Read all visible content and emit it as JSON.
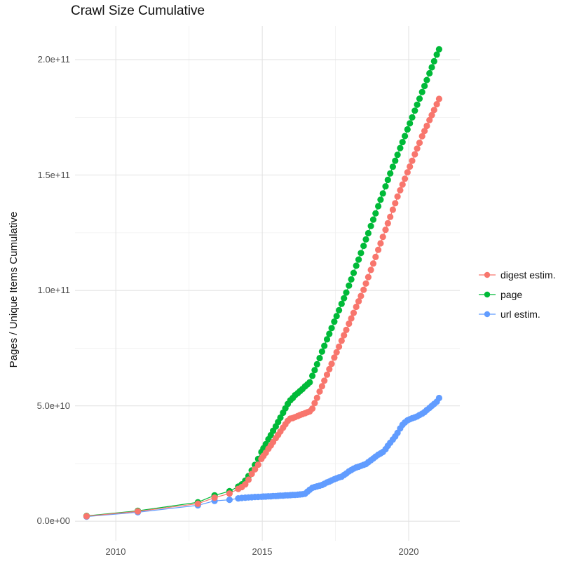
{
  "title": "Crawl Size Cumulative",
  "axes": {
    "y": {
      "title": "Pages / Unique Items Cumulative",
      "tick_labels": [
        "2.0e+11",
        "1.5e+11",
        "1.0e+11",
        "5.0e+10",
        "0.0e+00"
      ]
    },
    "x": {
      "title": "",
      "tick_labels": [
        "2010",
        "2015",
        "2020"
      ]
    }
  },
  "legend": {
    "items": [
      "digest estim.",
      "page",
      "url estim."
    ]
  },
  "chart_data": {
    "type": "scatter",
    "title": "Crawl Size Cumulative",
    "xlabel": "",
    "ylabel": "Pages / Unique Items Cumulative",
    "value_unit": "1e9",
    "xlim": [
      2008.6,
      2021.75
    ],
    "ylim_e9": [
      -8,
      215
    ],
    "grid": "on",
    "legend_position": "right",
    "axes": {
      "x_major": [
        2010,
        2015,
        2020
      ],
      "x_minor": [
        2012.5,
        2017.5
      ],
      "y_major_e9": [
        0,
        50,
        100,
        150,
        200
      ],
      "y_minor_e9": [
        25,
        75,
        125,
        175
      ]
    },
    "draw_order": [
      2,
      1,
      0
    ],
    "series": [
      {
        "name": "digest estim.",
        "color": "#F8766D",
        "points": [
          [
            2009.0,
            2.2
          ],
          [
            2010.75,
            4.3
          ],
          [
            2012.8,
            7.6
          ],
          [
            2013.37,
            10.2
          ],
          [
            2013.88,
            12
          ],
          [
            2014.18,
            14
          ],
          [
            2014.3,
            14.8
          ],
          [
            2014.42,
            16
          ],
          [
            2014.53,
            18
          ],
          [
            2014.64,
            20.5
          ],
          [
            2014.75,
            22.5
          ],
          [
            2014.86,
            24.5
          ],
          [
            2014.97,
            27
          ],
          [
            2015.04,
            28.3
          ],
          [
            2015.12,
            29.7
          ],
          [
            2015.21,
            31.4
          ],
          [
            2015.29,
            32.8
          ],
          [
            2015.37,
            34.3
          ],
          [
            2015.46,
            36
          ],
          [
            2015.54,
            37.4
          ],
          [
            2015.62,
            38.9
          ],
          [
            2015.71,
            40.5
          ],
          [
            2015.79,
            42
          ],
          [
            2015.87,
            43.5
          ],
          [
            2015.96,
            44.5
          ],
          [
            2016.04,
            44.7
          ],
          [
            2016.12,
            45.1
          ],
          [
            2016.21,
            45.6
          ],
          [
            2016.29,
            46
          ],
          [
            2016.37,
            46.4
          ],
          [
            2016.46,
            46.8
          ],
          [
            2016.54,
            47.2
          ],
          [
            2016.62,
            47.6
          ],
          [
            2016.71,
            48.8
          ],
          [
            2016.79,
            51.2
          ],
          [
            2016.87,
            53.5
          ],
          [
            2016.96,
            56.2
          ],
          [
            2017.04,
            58.5
          ],
          [
            2017.12,
            60.9
          ],
          [
            2017.21,
            63.5
          ],
          [
            2017.29,
            65.9
          ],
          [
            2017.37,
            68.2
          ],
          [
            2017.46,
            70.9
          ],
          [
            2017.54,
            73.2
          ],
          [
            2017.62,
            75.6
          ],
          [
            2017.71,
            78.2
          ],
          [
            2017.79,
            80.6
          ],
          [
            2017.87,
            82.9
          ],
          [
            2017.96,
            85.6
          ],
          [
            2018.04,
            87.9
          ],
          [
            2018.12,
            90.3
          ],
          [
            2018.21,
            92.9
          ],
          [
            2018.29,
            95.3
          ],
          [
            2018.37,
            97.6
          ],
          [
            2018.46,
            100.3
          ],
          [
            2018.54,
            103
          ],
          [
            2018.62,
            105.8
          ],
          [
            2018.71,
            108.9
          ],
          [
            2018.79,
            111.7
          ],
          [
            2018.87,
            114.5
          ],
          [
            2018.96,
            117.6
          ],
          [
            2019.04,
            120.4
          ],
          [
            2019.12,
            123.2
          ],
          [
            2019.21,
            126.3
          ],
          [
            2019.29,
            129.1
          ],
          [
            2019.37,
            131.9
          ],
          [
            2019.46,
            135
          ],
          [
            2019.54,
            137.8
          ],
          [
            2019.62,
            140.7
          ],
          [
            2019.71,
            143.4
          ],
          [
            2019.79,
            145.9
          ],
          [
            2019.87,
            148.4
          ],
          [
            2019.96,
            151.2
          ],
          [
            2020.04,
            153.7
          ],
          [
            2020.12,
            156.2
          ],
          [
            2020.21,
            159
          ],
          [
            2020.29,
            161.5
          ],
          [
            2020.37,
            164
          ],
          [
            2020.46,
            166.8
          ],
          [
            2020.54,
            169.1
          ],
          [
            2020.62,
            171.3
          ],
          [
            2020.71,
            173.8
          ],
          [
            2020.79,
            176
          ],
          [
            2020.87,
            178.2
          ],
          [
            2020.96,
            180.7
          ],
          [
            2021.04,
            183
          ]
        ]
      },
      {
        "name": "page",
        "color": "#00BA38",
        "points": [
          [
            2009.0,
            2.3
          ],
          [
            2010.75,
            4.5
          ],
          [
            2012.8,
            8.2
          ],
          [
            2013.37,
            11.2
          ],
          [
            2013.88,
            13
          ],
          [
            2014.18,
            15
          ],
          [
            2014.3,
            16
          ],
          [
            2014.42,
            17.6
          ],
          [
            2014.53,
            19.6
          ],
          [
            2014.64,
            22
          ],
          [
            2014.75,
            24.4
          ],
          [
            2014.86,
            27
          ],
          [
            2014.97,
            30
          ],
          [
            2015.04,
            31.6
          ],
          [
            2015.12,
            33.4
          ],
          [
            2015.21,
            35.5
          ],
          [
            2015.29,
            37.3
          ],
          [
            2015.37,
            39.2
          ],
          [
            2015.46,
            41.1
          ],
          [
            2015.54,
            43
          ],
          [
            2015.62,
            44.9
          ],
          [
            2015.71,
            47
          ],
          [
            2015.79,
            48.9
          ],
          [
            2015.87,
            50.8
          ],
          [
            2015.96,
            52.4
          ],
          [
            2016.04,
            53.4
          ],
          [
            2016.12,
            54.6
          ],
          [
            2016.21,
            55.5
          ],
          [
            2016.29,
            56.4
          ],
          [
            2016.37,
            57.3
          ],
          [
            2016.46,
            58.4
          ],
          [
            2016.54,
            59.3
          ],
          [
            2016.62,
            60.2
          ],
          [
            2016.71,
            63
          ],
          [
            2016.79,
            65.5
          ],
          [
            2016.87,
            68
          ],
          [
            2016.96,
            70.7
          ],
          [
            2017.04,
            73.5
          ],
          [
            2017.12,
            76
          ],
          [
            2017.21,
            78.8
          ],
          [
            2017.29,
            81.2
          ],
          [
            2017.37,
            83.7
          ],
          [
            2017.46,
            86.5
          ],
          [
            2017.54,
            88.9
          ],
          [
            2017.62,
            91.4
          ],
          [
            2017.71,
            94.2
          ],
          [
            2017.79,
            96.6
          ],
          [
            2017.87,
            99.1
          ],
          [
            2017.96,
            102.1
          ],
          [
            2018.04,
            104.8
          ],
          [
            2018.12,
            107.6
          ],
          [
            2018.21,
            110.7
          ],
          [
            2018.29,
            113.4
          ],
          [
            2018.37,
            116.2
          ],
          [
            2018.46,
            119.3
          ],
          [
            2018.54,
            122.1
          ],
          [
            2018.62,
            124.8
          ],
          [
            2018.71,
            127.9
          ],
          [
            2018.79,
            130.7
          ],
          [
            2018.87,
            133.4
          ],
          [
            2018.96,
            136.5
          ],
          [
            2019.04,
            139.3
          ],
          [
            2019.12,
            142
          ],
          [
            2019.21,
            145.1
          ],
          [
            2019.29,
            147.9
          ],
          [
            2019.37,
            150.7
          ],
          [
            2019.46,
            153.6
          ],
          [
            2019.54,
            156.2
          ],
          [
            2019.62,
            158.8
          ],
          [
            2019.71,
            161.7
          ],
          [
            2019.79,
            164.3
          ],
          [
            2019.87,
            166.9
          ],
          [
            2019.96,
            169.8
          ],
          [
            2020.04,
            172.4
          ],
          [
            2020.12,
            175
          ],
          [
            2020.21,
            177.9
          ],
          [
            2020.29,
            180.5
          ],
          [
            2020.37,
            183.1
          ],
          [
            2020.46,
            186
          ],
          [
            2020.54,
            188.6
          ],
          [
            2020.62,
            191.2
          ],
          [
            2020.71,
            194.1
          ],
          [
            2020.79,
            196.7
          ],
          [
            2020.87,
            199.3
          ],
          [
            2020.96,
            202.2
          ],
          [
            2021.04,
            204.5
          ]
        ]
      },
      {
        "name": "url estim.",
        "color": "#619CFF",
        "points": [
          [
            2009.0,
            2
          ],
          [
            2010.75,
            3.9
          ],
          [
            2012.8,
            6.9
          ],
          [
            2013.37,
            8.8
          ],
          [
            2013.88,
            9.3
          ],
          [
            2014.18,
            9.9
          ],
          [
            2014.3,
            10.1
          ],
          [
            2014.42,
            10.2
          ],
          [
            2014.53,
            10.3
          ],
          [
            2014.64,
            10.4
          ],
          [
            2014.75,
            10.5
          ],
          [
            2014.86,
            10.55
          ],
          [
            2014.97,
            10.6
          ],
          [
            2015.04,
            10.7
          ],
          [
            2015.12,
            10.7
          ],
          [
            2015.21,
            10.8
          ],
          [
            2015.29,
            10.8
          ],
          [
            2015.37,
            10.9
          ],
          [
            2015.46,
            10.9
          ],
          [
            2015.54,
            11
          ],
          [
            2015.62,
            11.1
          ],
          [
            2015.71,
            11.1
          ],
          [
            2015.79,
            11.2
          ],
          [
            2015.87,
            11.2
          ],
          [
            2015.96,
            11.3
          ],
          [
            2016.04,
            11.4
          ],
          [
            2016.12,
            11.4
          ],
          [
            2016.21,
            11.5
          ],
          [
            2016.29,
            11.6
          ],
          [
            2016.37,
            11.7
          ],
          [
            2016.46,
            11.9
          ],
          [
            2016.54,
            12.8
          ],
          [
            2016.62,
            13.6
          ],
          [
            2016.71,
            14.5
          ],
          [
            2016.79,
            14.8
          ],
          [
            2016.87,
            15.1
          ],
          [
            2016.96,
            15.4
          ],
          [
            2017.04,
            15.7
          ],
          [
            2017.12,
            16.2
          ],
          [
            2017.21,
            16.8
          ],
          [
            2017.29,
            17.2
          ],
          [
            2017.37,
            17.7
          ],
          [
            2017.46,
            18.2
          ],
          [
            2017.54,
            18.6
          ],
          [
            2017.62,
            19
          ],
          [
            2017.71,
            19.3
          ],
          [
            2017.79,
            20
          ],
          [
            2017.87,
            20.7
          ],
          [
            2017.96,
            21.6
          ],
          [
            2018.04,
            22.2
          ],
          [
            2018.12,
            22.8
          ],
          [
            2018.21,
            23.3
          ],
          [
            2018.29,
            23.6
          ],
          [
            2018.37,
            24
          ],
          [
            2018.46,
            24.4
          ],
          [
            2018.54,
            24.8
          ],
          [
            2018.62,
            25.6
          ],
          [
            2018.71,
            26.4
          ],
          [
            2018.79,
            27.2
          ],
          [
            2018.87,
            28
          ],
          [
            2018.96,
            28.8
          ],
          [
            2019.04,
            29.4
          ],
          [
            2019.12,
            30
          ],
          [
            2019.21,
            31.2
          ],
          [
            2019.29,
            32.7
          ],
          [
            2019.37,
            34
          ],
          [
            2019.46,
            35.4
          ],
          [
            2019.54,
            36.7
          ],
          [
            2019.62,
            38.3
          ],
          [
            2019.71,
            40.2
          ],
          [
            2019.79,
            41.8
          ],
          [
            2019.87,
            42.8
          ],
          [
            2019.96,
            43.7
          ],
          [
            2020.04,
            44.2
          ],
          [
            2020.12,
            44.6
          ],
          [
            2020.21,
            45
          ],
          [
            2020.29,
            45.4
          ],
          [
            2020.37,
            46
          ],
          [
            2020.46,
            46.6
          ],
          [
            2020.54,
            47.3
          ],
          [
            2020.62,
            48.2
          ],
          [
            2020.71,
            49.1
          ],
          [
            2020.79,
            50
          ],
          [
            2020.87,
            50.8
          ],
          [
            2020.96,
            51.8
          ],
          [
            2021.04,
            53.4
          ]
        ]
      }
    ]
  },
  "colors": {
    "grid_major": "#e3e3e3",
    "grid_minor": "#f0f0f0",
    "tick_text": "#4d4d4d",
    "title_text": "#111111"
  }
}
